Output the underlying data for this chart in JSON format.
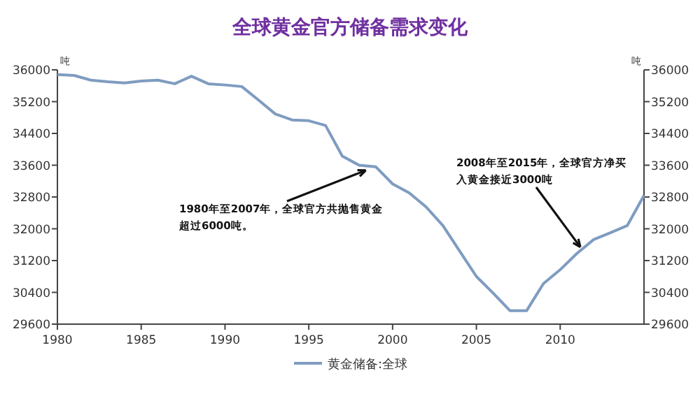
{
  "chart_data": {
    "type": "line",
    "title": "全球黄金官方储备需求变化",
    "ylabel": "吨",
    "y2label": "吨",
    "x": [
      1980,
      1981,
      1982,
      1983,
      1984,
      1985,
      1986,
      1987,
      1988,
      1989,
      1990,
      1991,
      1992,
      1993,
      1994,
      1995,
      1996,
      1997,
      1998,
      1999,
      2000,
      2001,
      2002,
      2003,
      2004,
      2005,
      2006,
      2007,
      2008,
      2009,
      2010,
      2011,
      2012,
      2013,
      2014,
      2015
    ],
    "series": [
      {
        "name": "黄金储备:全球",
        "color": "#7f9cc0",
        "values": [
          35880,
          35860,
          35740,
          35700,
          35670,
          35720,
          35740,
          35650,
          35840,
          35650,
          35620,
          35580,
          35240,
          34890,
          34740,
          34720,
          34600,
          33830,
          33600,
          33560,
          33130,
          32900,
          32550,
          32080,
          31440,
          30800,
          30380,
          29940,
          29940,
          30620,
          30970,
          31380,
          31730,
          31900,
          32080,
          32840
        ]
      }
    ],
    "xlim": [
      1980,
      2015
    ],
    "xticks": [
      1980,
      1985,
      1990,
      1995,
      2000,
      2005,
      2010
    ],
    "ylim": [
      29600,
      36000
    ],
    "yticks": [
      29600,
      30400,
      31200,
      32000,
      32800,
      33600,
      34400,
      35200,
      36000
    ],
    "y2lim": [
      29600,
      36000
    ],
    "y2ticks": [
      29600,
      30400,
      31200,
      32000,
      32800,
      33600,
      34400,
      35200,
      36000
    ],
    "legend": "bottom",
    "grid": false,
    "marker": "none",
    "line_style": "solid",
    "annotations": [
      {
        "text": "1980年至2007年，全球官方共抛售黄金超过6000吨。",
        "x": 1998.4,
        "y": 33470
      },
      {
        "text": "2008年至2015年，全球官方净买入黄金接近3000吨",
        "x": 2011.2,
        "y": 31540
      }
    ]
  }
}
